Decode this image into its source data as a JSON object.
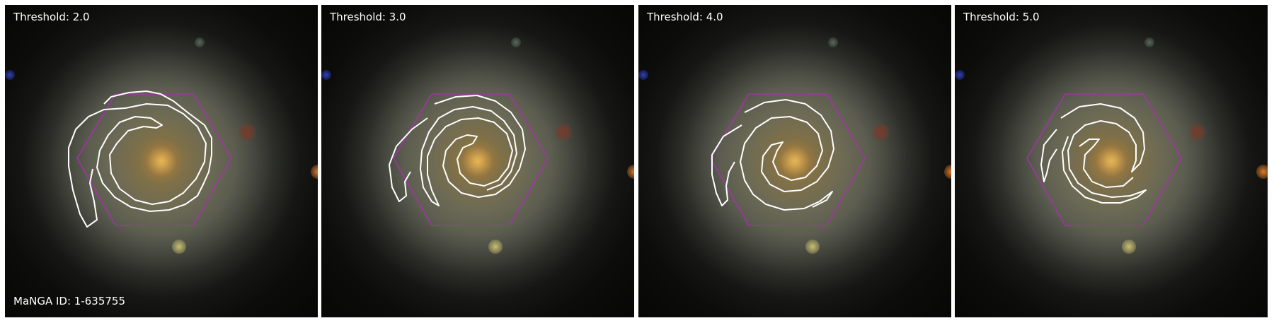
{
  "panels": [
    {
      "threshold_label": "Threshold: 2.0"
    },
    {
      "threshold_label": "Threshold: 3.0"
    },
    {
      "threshold_label": "Threshold: 4.0"
    },
    {
      "threshold_label": "Threshold: 5.0"
    }
  ],
  "manga_id_label": "MaNGA ID: 1-635755",
  "colors": {
    "hexagon": "#b02bb8",
    "contour": "#ffffff",
    "text": "#ffffff"
  }
}
